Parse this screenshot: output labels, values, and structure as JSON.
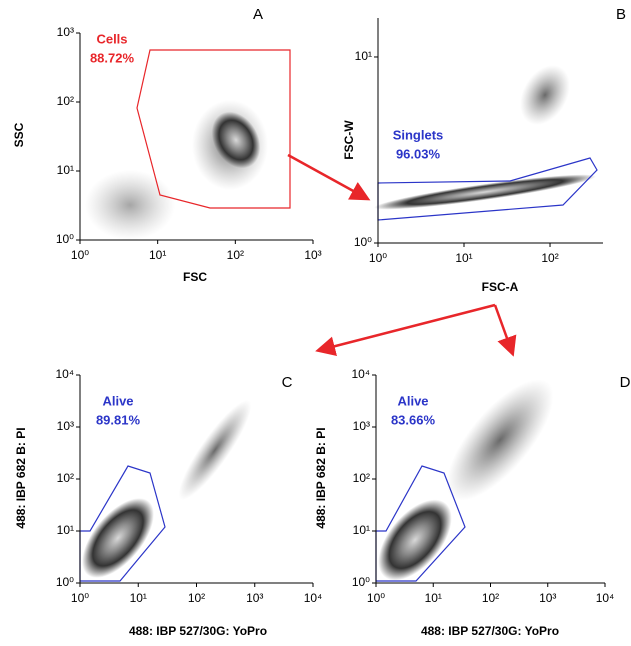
{
  "chart_data": [
    {
      "type": "scatter",
      "panel": "A",
      "xlabel": "FSC",
      "ylabel": "SSC",
      "log_scale": true,
      "xlim": [
        1,
        1000
      ],
      "ylim": [
        1,
        1000
      ],
      "xticks": [
        {
          "value": 1,
          "label": "10⁰"
        },
        {
          "value": 10,
          "label": "10¹"
        },
        {
          "value": 100,
          "label": "10²"
        },
        {
          "value": 1000,
          "label": "10³"
        }
      ],
      "yticks": [
        {
          "value": 1,
          "label": "10⁰"
        },
        {
          "value": 10,
          "label": "10¹"
        },
        {
          "value": 100,
          "label": "10²"
        },
        {
          "value": 1000,
          "label": "10³"
        }
      ],
      "gate": {
        "name": "Cells",
        "label": "88.72%",
        "color": "#e8262a"
      }
    },
    {
      "type": "scatter",
      "panel": "B",
      "xlabel": "FSC-A",
      "ylabel": "FSC-W",
      "log_scale": true,
      "xlim": [
        1,
        413
      ],
      "ylim": [
        1,
        16.2
      ],
      "xticks": [
        {
          "value": 1,
          "label": "10⁰"
        },
        {
          "value": 10,
          "label": "10¹"
        },
        {
          "value": 100,
          "label": "10²"
        }
      ],
      "yticks": [
        {
          "value": 1,
          "label": "10⁰"
        },
        {
          "value": 10,
          "label": "10¹"
        }
      ],
      "gate": {
        "name": "Singlets",
        "label": "96.03%",
        "color": "#2b35c8"
      }
    },
    {
      "type": "scatter",
      "panel": "C",
      "xlabel": "488: IBP 527/30G: YoPro",
      "ylabel": "488: IBP 682 B: PI",
      "log_scale": true,
      "xlim": [
        1,
        10000
      ],
      "ylim": [
        1,
        10000
      ],
      "xticks": [
        {
          "value": 1,
          "label": "10⁰"
        },
        {
          "value": 10,
          "label": "10¹"
        },
        {
          "value": 100,
          "label": "10²"
        },
        {
          "value": 1000,
          "label": "10³"
        },
        {
          "value": 10000,
          "label": "10⁴"
        }
      ],
      "yticks": [
        {
          "value": 1,
          "label": "10⁰"
        },
        {
          "value": 10,
          "label": "10¹"
        },
        {
          "value": 100,
          "label": "10²"
        },
        {
          "value": 1000,
          "label": "10³"
        },
        {
          "value": 10000,
          "label": "10⁴"
        }
      ],
      "gate": {
        "name": "Alive",
        "label": "89.81%",
        "color": "#2b35c8"
      }
    },
    {
      "type": "scatter",
      "panel": "D",
      "xlabel": "488: IBP 527/30G: YoPro",
      "ylabel": "488: IBP 682 B: PI",
      "log_scale": true,
      "xlim": [
        1,
        10000
      ],
      "ylim": [
        1,
        10000
      ],
      "xticks": [
        {
          "value": 1,
          "label": "10⁰"
        },
        {
          "value": 10,
          "label": "10¹"
        },
        {
          "value": 100,
          "label": "10²"
        },
        {
          "value": 1000,
          "label": "10³"
        },
        {
          "value": 10000,
          "label": "10⁴"
        }
      ],
      "yticks": [
        {
          "value": 1,
          "label": "10⁰"
        },
        {
          "value": 10,
          "label": "10¹"
        },
        {
          "value": 100,
          "label": "10²"
        },
        {
          "value": 1000,
          "label": "10³"
        },
        {
          "value": 10000,
          "label": "10⁴"
        }
      ],
      "gate": {
        "name": "Alive",
        "label": "83.66%",
        "color": "#2b35c8"
      }
    }
  ]
}
